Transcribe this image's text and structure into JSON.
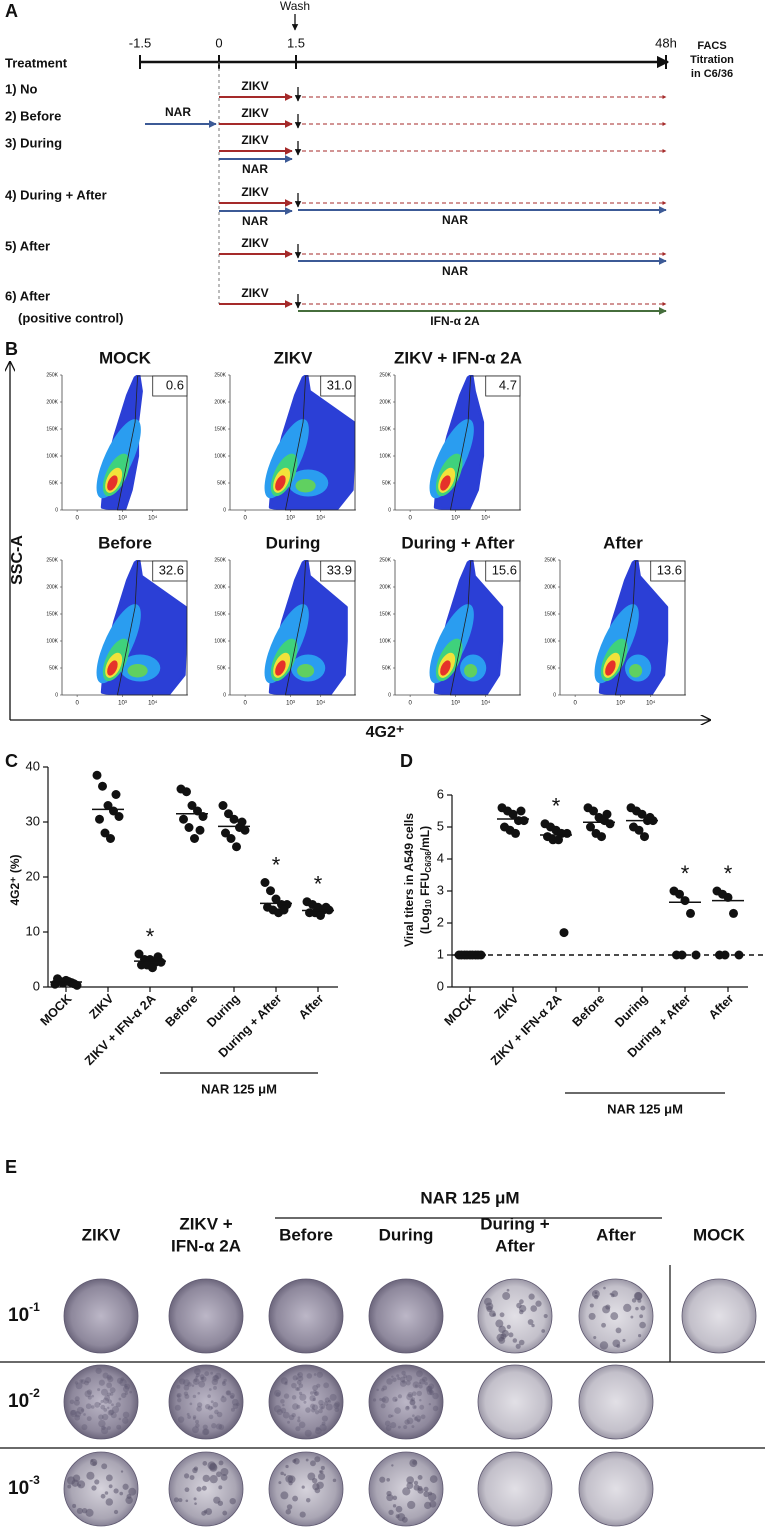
{
  "panel_a": {
    "label": "A",
    "wash": "Wash",
    "treatment_header": "Treatment",
    "time_labels": [
      "-1.5",
      "0",
      "1.5",
      "48h"
    ],
    "readout": [
      "FACS",
      "Titration",
      "in C6/36"
    ],
    "rows": [
      {
        "label": "1) No",
        "zikv": "ZIKV"
      },
      {
        "label": "2) Before",
        "zikv": "ZIKV",
        "pre": "NAR"
      },
      {
        "label": "3) During",
        "zikv": "ZIKV",
        "during": "NAR"
      },
      {
        "label": "4) During + After",
        "zikv": "ZIKV",
        "during": "NAR",
        "after": {
          "text": "NAR",
          "color": "#3c5a96"
        }
      },
      {
        "label": "5) After",
        "zikv": "ZIKV",
        "after": {
          "text": "NAR",
          "color": "#3c5a96"
        }
      },
      {
        "label": "6) After",
        "sublabel": "(positive control)",
        "zikv": "ZIKV",
        "after": {
          "text": "IFN-α 2A",
          "color": "#466e3c"
        }
      }
    ]
  },
  "panel_b": {
    "label": "B",
    "y_axis_label": "SSC-A",
    "x_axis_label": "4G2⁺",
    "plot_yticks": [
      "250K",
      "200K",
      "150K",
      "100K",
      "50K",
      "0"
    ],
    "plot_xticks": [
      "0",
      "10³",
      "10⁴"
    ],
    "plots": [
      {
        "title": "MOCK",
        "gate": "0.6"
      },
      {
        "title": "ZIKV",
        "gate": "31.0"
      },
      {
        "title": "ZIKV + IFN-α 2A",
        "gate": "4.7"
      },
      {
        "title": "Before",
        "gate": "32.6"
      },
      {
        "title": "During",
        "gate": "33.9"
      },
      {
        "title": "During + After",
        "gate": "15.6"
      },
      {
        "title": "After",
        "gate": "13.6"
      }
    ]
  },
  "panel_c": {
    "label": "C",
    "type": "dot",
    "ylabel": "4G2⁺ (%)",
    "ylim": [
      0,
      40
    ],
    "yticks": [
      0,
      10,
      20,
      30,
      40
    ],
    "categories": [
      "MOCK",
      "ZIKV",
      "ZIKV + IFN-α 2A",
      "Before",
      "During",
      "During + After",
      "After"
    ],
    "points": [
      [
        0.5,
        1,
        1.2,
        0.8,
        0.3,
        1.5,
        0.7,
        1,
        0.6
      ],
      [
        38.5,
        36.5,
        33,
        32,
        31,
        30.5,
        28,
        27,
        35
      ],
      [
        6,
        5,
        5,
        4.5,
        4.5,
        4,
        4,
        3.5,
        5.5
      ],
      [
        36,
        35.5,
        33,
        32,
        31,
        30.5,
        29,
        27,
        28.5
      ],
      [
        33,
        31.5,
        30.5,
        29,
        28.5,
        28,
        27,
        25.5,
        30
      ],
      [
        19,
        17.5,
        16,
        15,
        15,
        14.5,
        14,
        13.5,
        14
      ],
      [
        15.5,
        15,
        14.5,
        14,
        14,
        13.5,
        13.5,
        13,
        14.5
      ]
    ],
    "means": [
      0.9,
      32.3,
      4.7,
      31.5,
      29.2,
      15.2,
      13.9
    ],
    "significance": [
      null,
      null,
      "*",
      null,
      null,
      "*",
      "*"
    ],
    "group_label": "NAR 125 μM"
  },
  "panel_d": {
    "label": "D",
    "type": "dot",
    "ylabel_line1": "Viral  titers in A549 cells",
    "ylabel_line2": [
      "(Log",
      "10",
      " FFU",
      "C6/36",
      "/mL)"
    ],
    "ylim": [
      0,
      6
    ],
    "yticks": [
      0,
      1,
      2,
      3,
      4,
      5,
      6
    ],
    "detection_limit": 1,
    "categories": [
      "MOCK",
      "ZIKV",
      "ZIKV + IFN-α 2A",
      "Before",
      "During",
      "During + After",
      "After"
    ],
    "points": [
      [
        1,
        1,
        1,
        1,
        1,
        1,
        1,
        1,
        1
      ],
      [
        5.6,
        5.5,
        5.4,
        5.2,
        5.2,
        5.0,
        4.9,
        4.8,
        5.5
      ],
      [
        5.1,
        5.0,
        4.9,
        4.8,
        4.8,
        4.7,
        4.6,
        4.6,
        1.7
      ],
      [
        5.6,
        5.5,
        5.3,
        5.2,
        5.1,
        5.0,
        4.8,
        4.7,
        5.4
      ],
      [
        5.6,
        5.5,
        5.4,
        5.2,
        5.2,
        5.0,
        4.9,
        4.7,
        5.3
      ],
      [
        3.0,
        2.9,
        2.7,
        2.3,
        1,
        1,
        1
      ],
      [
        3.0,
        2.9,
        2.8,
        2.3,
        1,
        1,
        1
      ]
    ],
    "means": [
      1,
      5.25,
      4.75,
      5.15,
      5.2,
      2.65,
      2.7
    ],
    "significance": [
      null,
      null,
      "*",
      null,
      null,
      "*",
      "*"
    ],
    "group_label": "NAR 125 μM"
  },
  "panel_e": {
    "label": "E",
    "group_label": "NAR 125 μM",
    "columns": [
      [
        "ZIKV"
      ],
      [
        "ZIKV +",
        "IFN-α 2A"
      ],
      [
        "Before"
      ],
      [
        "During"
      ],
      [
        "During +",
        "After"
      ],
      [
        "After"
      ],
      [
        "MOCK"
      ]
    ],
    "dilutions": [
      {
        "base": "10",
        "exp": "-1"
      },
      {
        "base": "10",
        "exp": "-2"
      },
      {
        "base": "10",
        "exp": "-3"
      }
    ]
  }
}
